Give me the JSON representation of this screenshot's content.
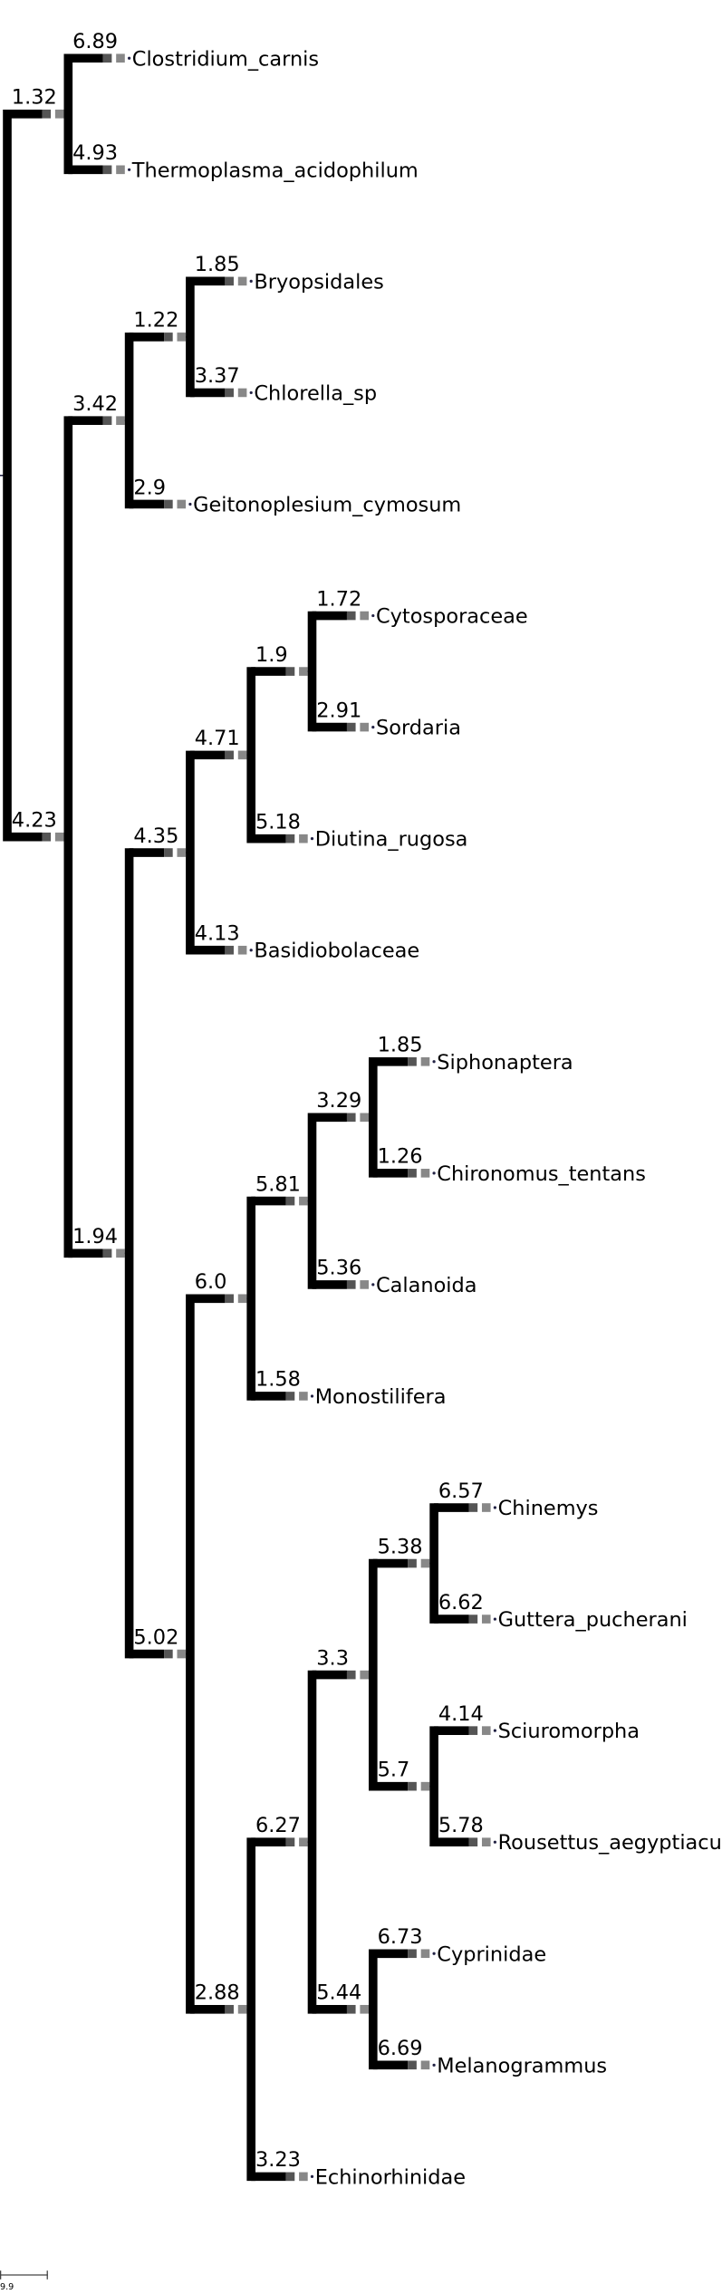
{
  "tree": {
    "children": [
      {
        "length": "1.32",
        "children": [
          {
            "length": "6.89",
            "name": "Clostridium_carnis"
          },
          {
            "length": "4.93",
            "name": "Thermoplasma_acidophilum"
          }
        ]
      },
      {
        "length": "4.23",
        "children": [
          {
            "length": "3.42",
            "children": [
              {
                "length": "1.22",
                "children": [
                  {
                    "length": "1.85",
                    "name": "Bryopsidales"
                  },
                  {
                    "length": "3.37",
                    "name": "Chlorella_sp"
                  }
                ]
              },
              {
                "length": "2.9",
                "name": "Geitonoplesium_cymosum"
              }
            ]
          },
          {
            "length": "1.94",
            "children": [
              {
                "length": "4.35",
                "children": [
                  {
                    "length": "4.71",
                    "children": [
                      {
                        "length": "1.9",
                        "children": [
                          {
                            "length": "1.72",
                            "name": "Cytosporaceae"
                          },
                          {
                            "length": "2.91",
                            "name": "Sordaria"
                          }
                        ]
                      },
                      {
                        "length": "5.18",
                        "name": "Diutina_rugosa"
                      }
                    ]
                  },
                  {
                    "length": "4.13",
                    "name": "Basidiobolaceae"
                  }
                ]
              },
              {
                "length": "5.02",
                "children": [
                  {
                    "length": "6.0",
                    "children": [
                      {
                        "length": "5.81",
                        "children": [
                          {
                            "length": "3.29",
                            "children": [
                              {
                                "length": "1.85",
                                "name": "Siphonaptera"
                              },
                              {
                                "length": "1.26",
                                "name": "Chironomus_tentans"
                              }
                            ]
                          },
                          {
                            "length": "5.36",
                            "name": "Calanoida"
                          }
                        ]
                      },
                      {
                        "length": "1.58",
                        "name": "Monostilifera"
                      }
                    ]
                  },
                  {
                    "length": "2.88",
                    "children": [
                      {
                        "length": "6.27",
                        "children": [
                          {
                            "length": "3.3",
                            "children": [
                              {
                                "length": "5.38",
                                "children": [
                                  {
                                    "length": "6.57",
                                    "name": "Chinemys"
                                  },
                                  {
                                    "length": "6.62",
                                    "name": "Guttera_pucherani"
                                  }
                                ]
                              },
                              {
                                "length": "5.7",
                                "children": [
                                  {
                                    "length": "4.14",
                                    "name": "Sciuromorpha"
                                  },
                                  {
                                    "length": "5.78",
                                    "name": "Rousettus_aegyptiacus"
                                  }
                                ]
                              }
                            ]
                          },
                          {
                            "length": "5.44",
                            "children": [
                              {
                                "length": "6.73",
                                "name": "Cyprinidae"
                              },
                              {
                                "length": "6.69",
                                "name": "Melanogrammus"
                              }
                            ]
                          }
                        ]
                      },
                      {
                        "length": "3.23",
                        "name": "Echinorhinidae"
                      }
                    ]
                  }
                ]
              }
            ]
          }
        ]
      }
    ]
  },
  "scale_bar": {
    "label": "9.9"
  }
}
